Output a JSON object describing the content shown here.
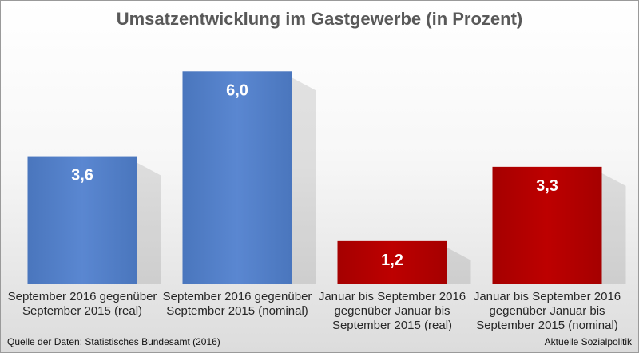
{
  "chart_data": {
    "type": "bar",
    "title": "Umsatzentwicklung im Gastgewerbe (in Prozent)",
    "categories": [
      [
        "September 2016 gegenüber",
        "September 2015 (real)"
      ],
      [
        "September 2016 gegenüber",
        "September 2015 (nominal)"
      ],
      [
        "Januar bis September 2016",
        "gegenüber Januar bis",
        "September 2015 (real)"
      ],
      [
        "Januar bis September 2016",
        "gegenüber Januar bis",
        "September 2015 (nominal)"
      ]
    ],
    "values": [
      3.6,
      6.0,
      1.2,
      3.3
    ],
    "value_labels": [
      "3,6",
      "6,0",
      "1,2",
      "3,3"
    ],
    "colors": [
      "#4f7cc4",
      "#4f7cc4",
      "#b00000",
      "#b00000"
    ],
    "ylim": [
      0,
      7
    ],
    "grid": false,
    "legend": "none"
  },
  "footer": {
    "source": "Quelle der Daten: Statistisches Bundesamt (2016)",
    "brand": "Aktuelle Sozialpolitik"
  }
}
